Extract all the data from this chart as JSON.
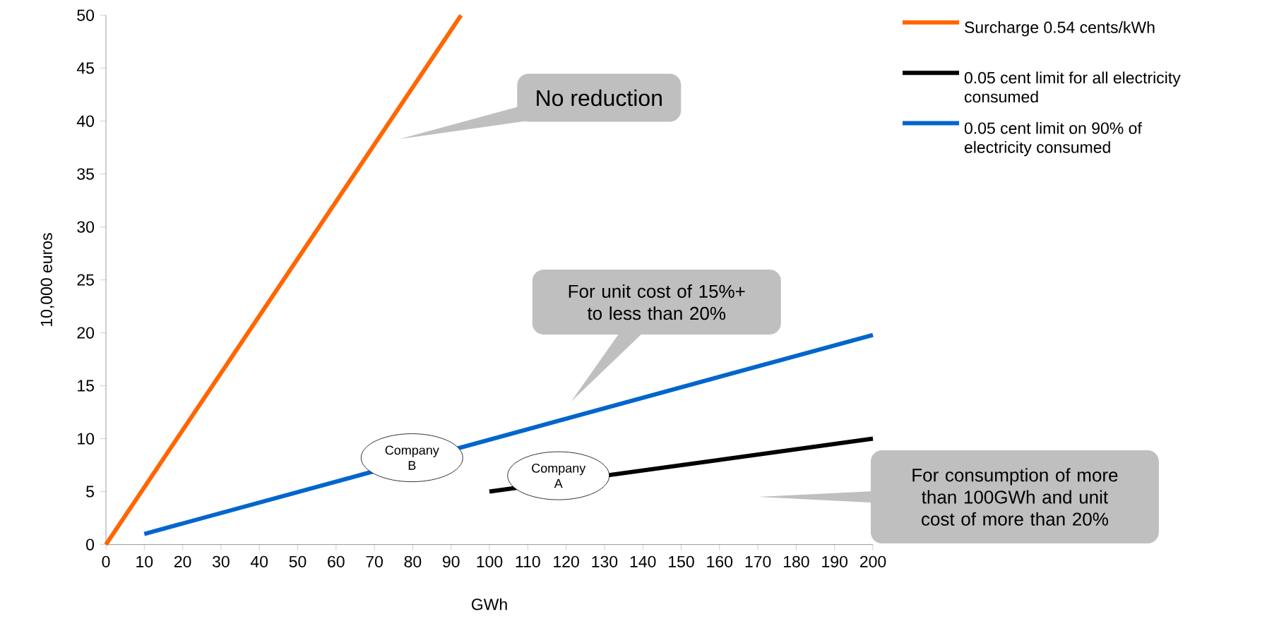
{
  "chart_data": {
    "type": "line",
    "xlabel": "GWh",
    "ylabel": "10,000 euros",
    "xlim": [
      0,
      200
    ],
    "xticks": [
      0,
      10,
      20,
      30,
      40,
      50,
      60,
      70,
      80,
      90,
      100,
      110,
      120,
      130,
      140,
      150,
      160,
      170,
      180,
      190,
      200
    ],
    "ylim": [
      0,
      50
    ],
    "yticks": [
      0,
      5,
      10,
      15,
      20,
      25,
      30,
      35,
      40,
      45,
      50
    ],
    "series": [
      {
        "name": "Surcharge 0.54 cents/kWh",
        "color": "#ff6600",
        "x": [
          0,
          92.6
        ],
        "values": [
          0,
          50
        ]
      },
      {
        "name": "0.05 cent limit for all electricity consumed",
        "color": "#000000",
        "x": [
          100,
          200
        ],
        "values": [
          5,
          10
        ]
      },
      {
        "name": "0.05 cent limit on 90% of electricity consumed",
        "color": "#0066cc",
        "x": [
          10,
          200
        ],
        "values": [
          1,
          19.8
        ]
      }
    ],
    "legend": "top right",
    "grid": false,
    "marker": "none",
    "line_style": "solid",
    "annotations": [
      "No reduction",
      "For unit cost of 15%+ to less than 20%",
      "For consumption of more than 100GWh and unit cost of more than 20%",
      "Company B",
      "Company A"
    ]
  }
}
